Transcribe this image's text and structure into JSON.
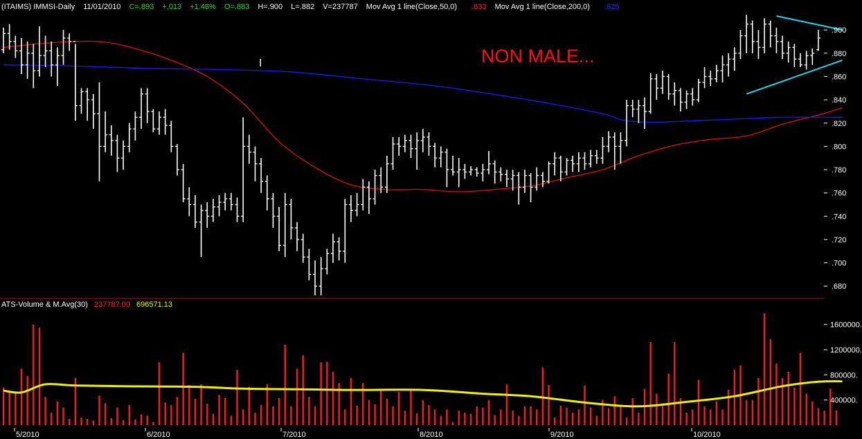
{
  "header": {
    "symbol": "(ITAIMS) IMMSI-Daily",
    "date": "11/01/2010",
    "close": "C=.893",
    "change": "+.013",
    "change_pct": "+1.48%",
    "open": "O=.883",
    "high": "H=.900",
    "low": "L=.882",
    "volume": "V=237787",
    "ma50_label": "Mov Avg 1 line(Close,50,0)",
    "ma50_value": ".833",
    "ma200_label": "Mov Avg 1 line(Close,200,0)",
    "ma200_value": ".825"
  },
  "annotation": "NON MALE...",
  "cursor_glyph": "I",
  "volume_header": {
    "label": "ATS-Volume & M.Avg(30)",
    "volume_value": "237787.00",
    "avg_value": "696571.13"
  },
  "colors": {
    "background": "#000000",
    "price_bars": "#ffffff",
    "ma50": "#e01010",
    "ma200": "#1a1aff",
    "triangle": "#22d8f0",
    "volume_bars": "#ff1a1a",
    "volume_avg": "#f0f000",
    "annotation": "#ff1010",
    "separator": "#c01010",
    "label_green": "#20e020",
    "label_white": "#ffffff"
  },
  "chart_data": [
    {
      "type": "ohlc",
      "ylim": [
        0.67,
        0.915
      ],
      "yticks": [
        ".680",
        ".700",
        ".720",
        ".740",
        ".760",
        ".780",
        ".800",
        ".820",
        ".840",
        ".860",
        ".880",
        ".900"
      ],
      "xticks": [
        "5/2010",
        "6/2010",
        "7/2010",
        "8/2010",
        "9/2010",
        "10/2010"
      ],
      "grid": false,
      "series": [
        {
          "name": "Mov Avg 1 line(Close,50,0)",
          "x": [
            0,
            8,
            16,
            22,
            28,
            34,
            40,
            46,
            52,
            58,
            64,
            70,
            76,
            82,
            88,
            94,
            100,
            106,
            112,
            118,
            124,
            130,
            136,
            140
          ],
          "values": [
            0.885,
            0.889,
            0.89,
            0.884,
            0.874,
            0.86,
            0.837,
            0.804,
            0.782,
            0.767,
            0.763,
            0.763,
            0.761,
            0.763,
            0.766,
            0.773,
            0.78,
            0.792,
            0.801,
            0.806,
            0.809,
            0.819,
            0.827,
            0.833
          ]
        },
        {
          "name": "Mov Avg 1 line(Close,200,0)",
          "x": [
            0,
            12,
            24,
            36,
            48,
            60,
            72,
            84,
            92,
            100,
            104,
            110,
            120,
            130,
            140
          ],
          "values": [
            0.87,
            0.869,
            0.867,
            0.866,
            0.864,
            0.858,
            0.852,
            0.843,
            0.836,
            0.828,
            0.822,
            0.821,
            0.823,
            0.825,
            0.825
          ]
        }
      ],
      "trendlines": [
        {
          "from": [
            129,
            0.912
          ],
          "to": [
            140,
            0.9
          ]
        },
        {
          "from": [
            124,
            0.845
          ],
          "to": [
            140,
            0.874
          ]
        }
      ],
      "bars": [
        [
          0.883,
          0.902,
          0.88,
          0.897
        ],
        [
          0.897,
          0.905,
          0.883,
          0.89
        ],
        [
          0.89,
          0.895,
          0.876,
          0.882
        ],
        [
          0.882,
          0.893,
          0.862,
          0.87
        ],
        [
          0.87,
          0.89,
          0.858,
          0.88
        ],
        [
          0.88,
          0.888,
          0.85,
          0.865
        ],
        [
          0.865,
          0.903,
          0.86,
          0.878
        ],
        [
          0.878,
          0.895,
          0.868,
          0.882
        ],
        [
          0.882,
          0.89,
          0.86,
          0.87
        ],
        [
          0.87,
          0.885,
          0.852,
          0.878
        ],
        [
          0.878,
          0.9,
          0.87,
          0.893
        ],
        [
          0.893,
          0.897,
          0.882,
          0.89
        ],
        [
          0.89,
          0.888,
          0.822,
          0.835
        ],
        [
          0.835,
          0.85,
          0.828,
          0.847
        ],
        [
          0.847,
          0.85,
          0.822,
          0.84
        ],
        [
          0.84,
          0.845,
          0.815,
          0.828
        ],
        [
          0.828,
          0.855,
          0.77,
          0.8
        ],
        [
          0.8,
          0.83,
          0.795,
          0.81
        ],
        [
          0.81,
          0.818,
          0.792,
          0.805
        ],
        [
          0.805,
          0.81,
          0.778,
          0.79
        ],
        [
          0.79,
          0.805,
          0.78,
          0.8
        ],
        [
          0.8,
          0.82,
          0.795,
          0.815
        ],
        [
          0.815,
          0.83,
          0.805,
          0.825
        ],
        [
          0.825,
          0.85,
          0.815,
          0.845
        ],
        [
          0.845,
          0.85,
          0.82,
          0.83
        ],
        [
          0.83,
          0.832,
          0.812,
          0.815
        ],
        [
          0.815,
          0.83,
          0.81,
          0.825
        ],
        [
          0.825,
          0.832,
          0.81,
          0.818
        ],
        [
          0.818,
          0.822,
          0.795,
          0.8
        ],
        [
          0.8,
          0.802,
          0.775,
          0.78
        ],
        [
          0.78,
          0.785,
          0.752,
          0.755
        ],
        [
          0.755,
          0.765,
          0.74,
          0.75
        ],
        [
          0.75,
          0.758,
          0.73,
          0.735
        ],
        [
          0.735,
          0.75,
          0.705,
          0.745
        ],
        [
          0.745,
          0.752,
          0.73,
          0.74
        ],
        [
          0.74,
          0.755,
          0.735,
          0.748
        ],
        [
          0.748,
          0.758,
          0.74,
          0.752
        ],
        [
          0.752,
          0.76,
          0.745,
          0.755
        ],
        [
          0.755,
          0.76,
          0.745,
          0.75
        ],
        [
          0.75,
          0.756,
          0.735,
          0.74
        ],
        [
          0.74,
          0.825,
          0.735,
          0.8
        ],
        [
          0.8,
          0.81,
          0.785,
          0.795
        ],
        [
          0.795,
          0.8,
          0.77,
          0.785
        ],
        [
          0.785,
          0.79,
          0.76,
          0.77
        ],
        [
          0.77,
          0.775,
          0.745,
          0.755
        ],
        [
          0.755,
          0.76,
          0.73,
          0.74
        ],
        [
          0.74,
          0.748,
          0.71,
          0.715
        ],
        [
          0.715,
          0.76,
          0.705,
          0.75
        ],
        [
          0.75,
          0.755,
          0.72,
          0.73
        ],
        [
          0.73,
          0.735,
          0.71,
          0.72
        ],
        [
          0.72,
          0.725,
          0.7,
          0.705
        ],
        [
          0.705,
          0.712,
          0.685,
          0.69
        ],
        [
          0.69,
          0.702,
          0.672,
          0.68
        ],
        [
          0.68,
          0.705,
          0.672,
          0.695
        ],
        [
          0.695,
          0.712,
          0.69,
          0.708
        ],
        [
          0.708,
          0.725,
          0.7,
          0.718
        ],
        [
          0.718,
          0.722,
          0.702,
          0.71
        ],
        [
          0.71,
          0.755,
          0.7,
          0.75
        ],
        [
          0.75,
          0.758,
          0.735,
          0.745
        ],
        [
          0.745,
          0.76,
          0.74,
          0.75
        ],
        [
          0.75,
          0.772,
          0.745,
          0.765
        ],
        [
          0.765,
          0.77,
          0.742,
          0.755
        ],
        [
          0.755,
          0.78,
          0.75,
          0.775
        ],
        [
          0.775,
          0.782,
          0.76,
          0.765
        ],
        [
          0.765,
          0.792,
          0.76,
          0.785
        ],
        [
          0.785,
          0.808,
          0.78,
          0.802
        ],
        [
          0.802,
          0.808,
          0.792,
          0.8
        ],
        [
          0.8,
          0.81,
          0.795,
          0.805
        ],
        [
          0.805,
          0.81,
          0.79,
          0.798
        ],
        [
          0.798,
          0.812,
          0.78,
          0.805
        ],
        [
          0.805,
          0.815,
          0.795,
          0.808
        ],
        [
          0.808,
          0.812,
          0.792,
          0.8
        ],
        [
          0.8,
          0.803,
          0.782,
          0.79
        ],
        [
          0.79,
          0.8,
          0.782,
          0.795
        ],
        [
          0.795,
          0.798,
          0.765,
          0.78
        ],
        [
          0.78,
          0.792,
          0.775,
          0.778
        ],
        [
          0.778,
          0.79,
          0.765,
          0.78
        ],
        [
          0.78,
          0.785,
          0.772,
          0.778
        ],
        [
          0.778,
          0.783,
          0.775,
          0.78
        ],
        [
          0.78,
          0.782,
          0.774,
          0.777
        ],
        [
          0.777,
          0.785,
          0.77,
          0.78
        ],
        [
          0.78,
          0.796,
          0.776,
          0.785
        ],
        [
          0.785,
          0.788,
          0.768,
          0.778
        ],
        [
          0.778,
          0.782,
          0.77,
          0.776
        ],
        [
          0.776,
          0.78,
          0.765,
          0.772
        ],
        [
          0.772,
          0.78,
          0.762,
          0.775
        ],
        [
          0.775,
          0.778,
          0.75,
          0.765
        ],
        [
          0.765,
          0.78,
          0.76,
          0.775
        ],
        [
          0.775,
          0.777,
          0.752,
          0.765
        ],
        [
          0.765,
          0.782,
          0.762,
          0.775
        ],
        [
          0.775,
          0.778,
          0.765,
          0.77
        ],
        [
          0.77,
          0.787,
          0.768,
          0.785
        ],
        [
          0.785,
          0.795,
          0.775,
          0.79
        ],
        [
          0.79,
          0.792,
          0.77,
          0.778
        ],
        [
          0.778,
          0.79,
          0.775,
          0.788
        ],
        [
          0.788,
          0.792,
          0.778,
          0.785
        ],
        [
          0.785,
          0.795,
          0.778,
          0.79
        ],
        [
          0.79,
          0.795,
          0.78,
          0.785
        ],
        [
          0.785,
          0.797,
          0.782,
          0.792
        ],
        [
          0.792,
          0.797,
          0.785,
          0.79
        ],
        [
          0.79,
          0.808,
          0.785,
          0.8
        ],
        [
          0.8,
          0.813,
          0.795,
          0.808
        ],
        [
          0.808,
          0.812,
          0.78,
          0.8
        ],
        [
          0.8,
          0.812,
          0.785,
          0.805
        ],
        [
          0.805,
          0.84,
          0.8,
          0.835
        ],
        [
          0.835,
          0.84,
          0.825,
          0.832
        ],
        [
          0.832,
          0.84,
          0.82,
          0.835
        ],
        [
          0.835,
          0.842,
          0.815,
          0.83
        ],
        [
          0.83,
          0.863,
          0.828,
          0.858
        ],
        [
          0.858,
          0.862,
          0.84,
          0.85
        ],
        [
          0.85,
          0.865,
          0.845,
          0.86
        ],
        [
          0.86,
          0.862,
          0.84,
          0.845
        ],
        [
          0.845,
          0.855,
          0.835,
          0.848
        ],
        [
          0.848,
          0.85,
          0.83,
          0.838
        ],
        [
          0.838,
          0.848,
          0.832,
          0.845
        ],
        [
          0.845,
          0.85,
          0.835,
          0.84
        ],
        [
          0.84,
          0.858,
          0.838,
          0.855
        ],
        [
          0.855,
          0.868,
          0.85,
          0.86
        ],
        [
          0.86,
          0.865,
          0.852,
          0.858
        ],
        [
          0.858,
          0.87,
          0.855,
          0.865
        ],
        [
          0.865,
          0.878,
          0.855,
          0.87
        ],
        [
          0.87,
          0.88,
          0.86,
          0.875
        ],
        [
          0.875,
          0.885,
          0.865,
          0.88
        ],
        [
          0.88,
          0.9,
          0.875,
          0.895
        ],
        [
          0.895,
          0.913,
          0.88,
          0.905
        ],
        [
          0.905,
          0.908,
          0.88,
          0.89
        ],
        [
          0.89,
          0.9,
          0.875,
          0.885
        ],
        [
          0.885,
          0.91,
          0.88,
          0.905
        ],
        [
          0.905,
          0.908,
          0.885,
          0.895
        ],
        [
          0.895,
          0.902,
          0.88,
          0.89
        ],
        [
          0.89,
          0.895,
          0.875,
          0.88
        ],
        [
          0.88,
          0.89,
          0.872,
          0.885
        ],
        [
          0.885,
          0.888,
          0.868,
          0.875
        ],
        [
          0.875,
          0.88,
          0.868,
          0.87
        ],
        [
          0.87,
          0.882,
          0.866,
          0.878
        ],
        [
          0.878,
          0.884,
          0.87,
          0.88
        ],
        [
          0.883,
          0.9,
          0.882,
          0.893
        ]
      ]
    },
    {
      "type": "bar",
      "ylim": [
        0,
        1850000
      ],
      "yticks": [
        "400000.",
        "800000.",
        "1200000.",
        "1600000."
      ],
      "series": [
        {
          "name": "ATS-Volume",
          "values": [
            600000,
            550000,
            520000,
            900000,
            780000,
            1600000,
            1550000,
            450000,
            200000,
            380000,
            280000,
            100000,
            750000,
            120000,
            100000,
            75000,
            470000,
            350000,
            110000,
            280000,
            80000,
            320000,
            90000,
            170000,
            150000,
            50000,
            1000000,
            360000,
            320000,
            450000,
            1150000,
            640000,
            420000,
            650000,
            340000,
            180000,
            480000,
            430000,
            150000,
            880000,
            250000,
            610000,
            200000,
            320000,
            650000,
            300000,
            430000,
            1280000,
            300000,
            900000,
            1110000,
            450000,
            300000,
            1000000,
            1010000,
            850000,
            670000,
            250000,
            750000,
            310000,
            670000,
            400000,
            330000,
            570000,
            420000,
            300000,
            530000,
            230000,
            560000,
            190000,
            400000,
            320000,
            250000,
            150000,
            250000,
            50000,
            230000,
            200000,
            180000,
            300000,
            280000,
            400000,
            160000,
            250000,
            650000,
            230000,
            150000,
            300000,
            300000,
            250000,
            920000,
            640000,
            120000,
            310000,
            280000,
            200000,
            250000,
            630000,
            280000,
            150000,
            400000,
            270000,
            460000,
            320000,
            120000,
            430000,
            200000,
            580000,
            1320000,
            500000,
            350000,
            820000,
            1320000,
            430000,
            200000,
            250000,
            720000,
            300000,
            250000,
            380000,
            250000,
            560000,
            880000,
            950000,
            400000,
            400000,
            750000,
            1780000,
            1370000,
            980000,
            750000,
            850000,
            600000,
            1150000,
            500000,
            380000,
            270000,
            230000,
            580000,
            237787
          ]
        },
        {
          "name": "M.Avg(30)",
          "x": [
            0,
            3,
            7,
            12,
            20,
            32,
            40,
            50,
            58,
            70,
            80,
            88,
            98,
            106,
            114,
            122,
            130,
            136,
            140
          ],
          "values": [
            550000,
            520000,
            650000,
            630000,
            620000,
            610000,
            580000,
            570000,
            560000,
            560000,
            500000,
            460000,
            350000,
            300000,
            370000,
            460000,
            620000,
            690000,
            696571
          ]
        }
      ],
      "xticks": [
        "5/2010",
        "6/2010",
        "7/2010",
        "8/2010",
        "9/2010",
        "10/2010"
      ]
    }
  ]
}
